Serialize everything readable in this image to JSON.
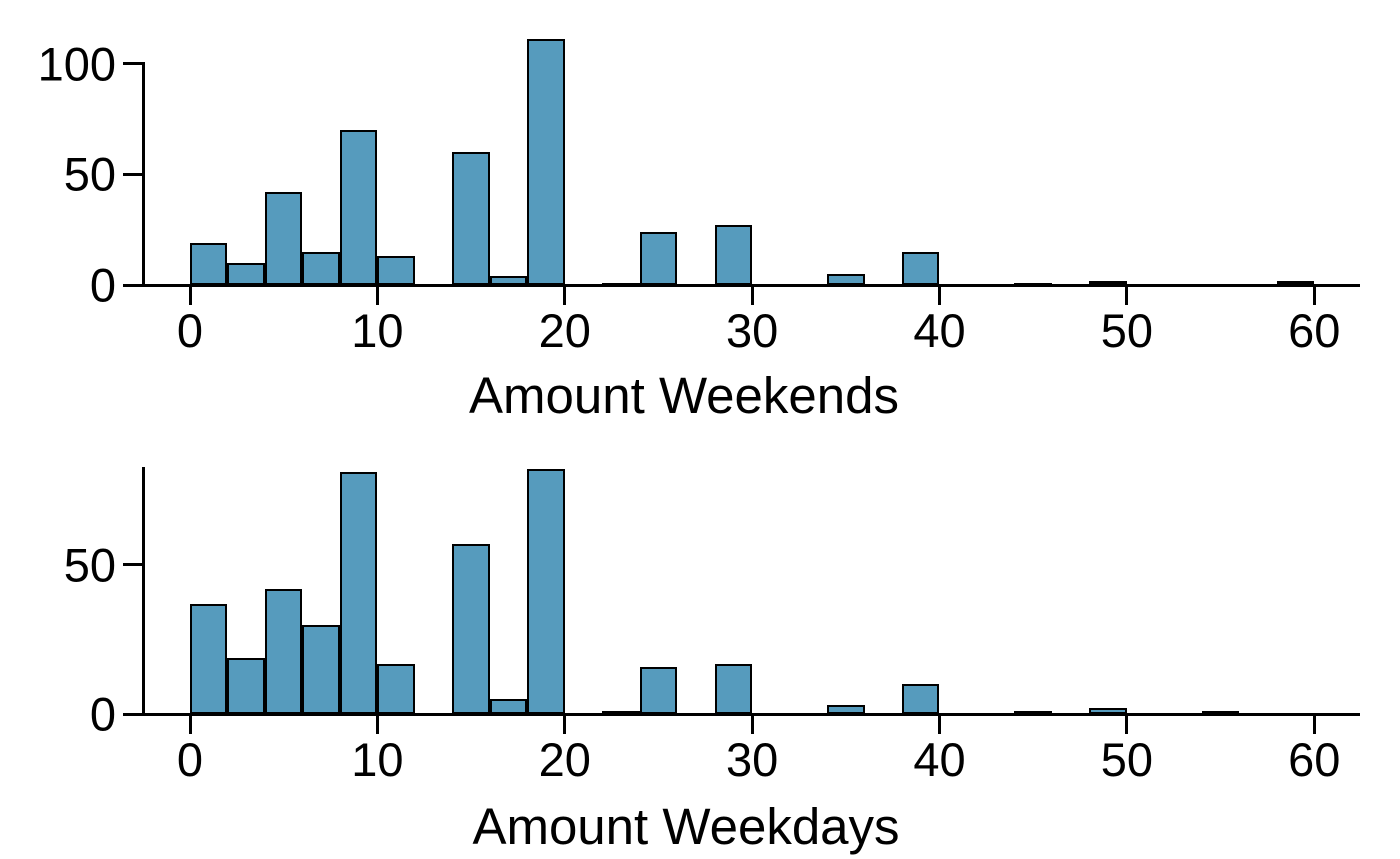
{
  "figure": {
    "background": "#ffffff",
    "description_top_label": "Amount Weekends",
    "description_bottom_label": "Amount Weekdays"
  },
  "style": {
    "bar_fill": "#569BBD",
    "bar_stroke": "#000000",
    "axis_color": "#000000",
    "text_color": "#000000"
  },
  "chart_data": [
    {
      "type": "bar",
      "subtype": "histogram",
      "title": "",
      "xlabel": "Amount Weekends",
      "ylabel": "",
      "bin_width": 2,
      "bin_edges": [
        0,
        2,
        4,
        6,
        8,
        10,
        12,
        14,
        16,
        18,
        20,
        22,
        24,
        26,
        28,
        30,
        32,
        34,
        36,
        38,
        40,
        42,
        44,
        46,
        48,
        50,
        52,
        54,
        56,
        58,
        60
      ],
      "counts": [
        19,
        10,
        42,
        15,
        70,
        13,
        0,
        60,
        4,
        111,
        0,
        1,
        24,
        0,
        27,
        0,
        0,
        5,
        0,
        15,
        0,
        0,
        1,
        0,
        2,
        0,
        0,
        0,
        0,
        2
      ],
      "x_ticks": [
        0,
        10,
        20,
        30,
        40,
        50,
        60
      ],
      "y_ticks": [
        0,
        50,
        100
      ],
      "xlim": [
        0,
        62.5
      ],
      "ylim": [
        0,
        111
      ],
      "grid": false,
      "legend": "none"
    },
    {
      "type": "bar",
      "subtype": "histogram",
      "title": "",
      "xlabel": "Amount Weekdays",
      "ylabel": "",
      "bin_width": 2,
      "bin_edges": [
        0,
        2,
        4,
        6,
        8,
        10,
        12,
        14,
        16,
        18,
        20,
        22,
        24,
        26,
        28,
        30,
        32,
        34,
        36,
        38,
        40,
        42,
        44,
        46,
        48,
        50,
        52,
        54,
        56,
        58,
        60
      ],
      "counts": [
        37,
        19,
        42,
        30,
        81,
        17,
        0,
        57,
        5,
        82,
        0,
        1,
        16,
        0,
        17,
        0,
        0,
        3,
        0,
        10,
        0,
        0,
        1,
        0,
        2,
        0,
        0,
        1,
        0,
        0
      ],
      "x_ticks": [
        0,
        10,
        20,
        30,
        40,
        50,
        60
      ],
      "y_ticks": [
        0,
        50
      ],
      "xlim": [
        0,
        62.5
      ],
      "ylim": [
        0,
        82.6
      ],
      "grid": false,
      "legend": "none"
    }
  ]
}
